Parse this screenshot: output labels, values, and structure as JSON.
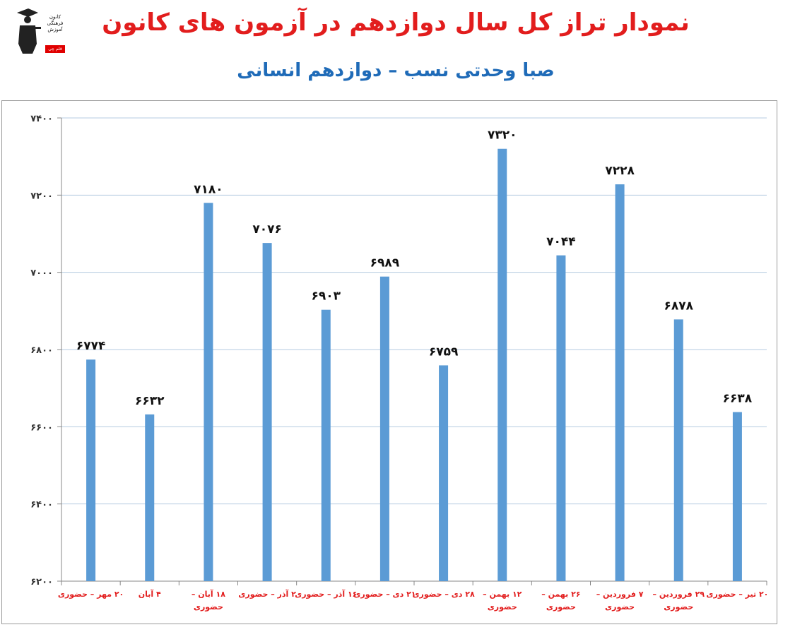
{
  "header": {
    "title": "نمودار تراز کل سال دوازدهم در آزمون های کانون",
    "subtitle": "صبا وحدتی نسب – دوازدهم انسانی"
  },
  "logo": {
    "lines": [
      "کانون",
      "فرهنگی",
      "آموزش"
    ],
    "badge": "قلم چی"
  },
  "colors": {
    "title": "#e21d1d",
    "subtitle": "#1f6bb8",
    "bar": "#5b9bd5",
    "xlabel": "#e21d1d",
    "grid": "#b4cbe0"
  },
  "chart_data": {
    "type": "bar",
    "categories": [
      [
        "۲۰ مهر – حضوری"
      ],
      [
        "۴ آبان"
      ],
      [
        "۱۸ آبان –",
        "حضوری"
      ],
      [
        "۲ آذر – حضوری"
      ],
      [
        "۱۶ آذر – حضوری"
      ],
      [
        "۲۱ دی – حضوری"
      ],
      [
        "۲۸ دی – حضوری"
      ],
      [
        "۱۲ بهمن –",
        "حضوری"
      ],
      [
        "۲۶ بهمن –",
        "حضوری"
      ],
      [
        "۷ فروردین –",
        "حضوری"
      ],
      [
        "۲۹ فروردین –",
        "حضوری"
      ],
      [
        "۲۰ تیر – حضوری"
      ]
    ],
    "values": [
      6774,
      6632,
      7180,
      7076,
      6903,
      6989,
      6759,
      7320,
      7044,
      7228,
      6878,
      6638
    ],
    "value_labels": [
      "۶۷۷۴",
      "۶۶۳۲",
      "۷۱۸۰",
      "۷۰۷۶",
      "۶۹۰۳",
      "۶۹۸۹",
      "۶۷۵۹",
      "۷۳۲۰",
      "۷۰۴۴",
      "۷۲۲۸",
      "۶۸۷۸",
      "۶۶۳۸"
    ],
    "ylim": [
      6200,
      7400
    ],
    "yticks": [
      6200,
      6400,
      6600,
      6800,
      7000,
      7200,
      7400
    ],
    "ytick_labels": [
      "۶۲۰۰",
      "۶۴۰۰",
      "۶۶۰۰",
      "۶۸۰۰",
      "۷۰۰۰",
      "۷۲۰۰",
      "۷۴۰۰"
    ],
    "grid": true,
    "legend": "none"
  }
}
